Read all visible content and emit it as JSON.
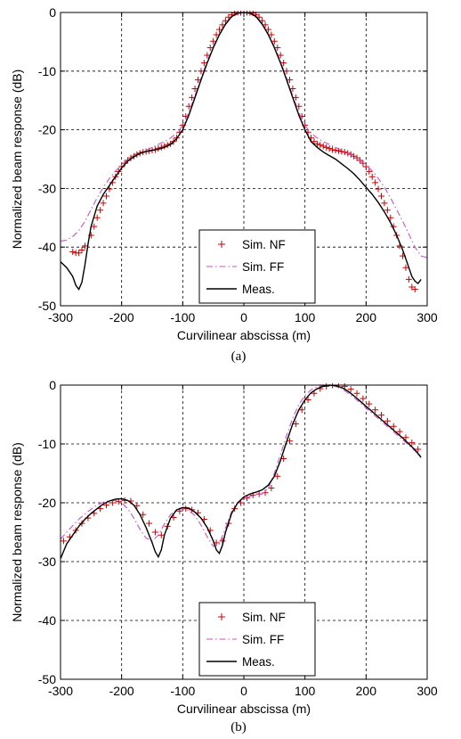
{
  "chart_data": [
    {
      "type": "line",
      "panel_caption": "(a)",
      "xlabel": "Curvilinear abscissa (m)",
      "ylabel": "Normalized beam response (dB)",
      "xlim": [
        -300,
        300
      ],
      "ylim": [
        -50,
        0
      ],
      "xticks": [
        "-300",
        "-200",
        "-100",
        "0",
        "100",
        "200",
        "300"
      ],
      "yticks": [
        "-50",
        "-40",
        "-30",
        "-20",
        "-10",
        "0"
      ],
      "grid": true,
      "legend_position": "bottom-center",
      "series": [
        {
          "name": "Sim. NF",
          "style": "plus-markers",
          "color": "#cc0000",
          "x": [
            -280,
            -275,
            -270,
            -265,
            -260,
            -250,
            -245,
            -240,
            -235,
            -230,
            -225,
            -220,
            -215,
            -210,
            -205,
            -200,
            -195,
            -190,
            -185,
            -180,
            -175,
            -170,
            -165,
            -160,
            -155,
            -150,
            -145,
            -140,
            -135,
            -130,
            -125,
            -120,
            -115,
            -110,
            -105,
            -100,
            -95,
            -90,
            -85,
            -80,
            -75,
            -70,
            -65,
            -60,
            -55,
            -50,
            -45,
            -40,
            -35,
            -30,
            -25,
            -20,
            -15,
            -10,
            -5,
            0,
            5,
            10,
            15,
            20,
            25,
            30,
            35,
            40,
            45,
            50,
            55,
            60,
            65,
            70,
            75,
            80,
            85,
            90,
            95,
            100,
            105,
            110,
            115,
            120,
            125,
            130,
            135,
            140,
            145,
            150,
            155,
            160,
            165,
            170,
            175,
            180,
            185,
            190,
            195,
            200,
            205,
            210,
            215,
            220,
            225,
            230,
            235,
            240,
            245,
            250,
            255,
            260,
            265,
            270,
            275,
            280
          ],
          "y": [
            -40.8,
            -41.0,
            -41.0,
            -40.5,
            -39.8,
            -38.0,
            -36.5,
            -35.0,
            -33.7,
            -32.5,
            -31.3,
            -30.1,
            -29.0,
            -28.0,
            -27.1,
            -26.3,
            -25.7,
            -25.2,
            -24.8,
            -24.5,
            -24.2,
            -24.0,
            -23.8,
            -23.7,
            -23.6,
            -23.5,
            -23.4,
            -23.2,
            -23.0,
            -22.8,
            -22.6,
            -22.4,
            -22.0,
            -21.4,
            -20.4,
            -19.2,
            -17.7,
            -16.0,
            -14.5,
            -13.0,
            -11.5,
            -10.0,
            -8.6,
            -7.3,
            -6.0,
            -4.9,
            -3.8,
            -2.9,
            -2.1,
            -1.4,
            -0.8,
            -0.4,
            -0.1,
            0.0,
            0.0,
            0.0,
            0.0,
            0.0,
            -0.1,
            -0.4,
            -0.8,
            -1.4,
            -2.1,
            -2.9,
            -3.8,
            -4.9,
            -6.0,
            -7.3,
            -8.6,
            -10.0,
            -11.5,
            -13.0,
            -14.5,
            -16.0,
            -17.7,
            -19.2,
            -20.4,
            -21.4,
            -22.0,
            -22.4,
            -22.6,
            -22.8,
            -23.0,
            -23.2,
            -23.4,
            -23.5,
            -23.6,
            -23.7,
            -23.8,
            -24.0,
            -24.2,
            -24.5,
            -24.8,
            -25.2,
            -25.7,
            -26.3,
            -27.1,
            -28.0,
            -29.0,
            -30.1,
            -31.3,
            -32.5,
            -33.7,
            -35.0,
            -36.5,
            -38.0,
            -39.8,
            -41.5,
            -43.5,
            -45.5,
            -46.8,
            -47.2
          ]
        },
        {
          "name": "Sim. FF",
          "style": "dash-dot",
          "color": "#d050d0",
          "x": [
            -300,
            -290,
            -280,
            -270,
            -260,
            -250,
            -240,
            -230,
            -220,
            -210,
            -200,
            -190,
            -180,
            -170,
            -160,
            -150,
            -140,
            -130,
            -120,
            -110,
            -100,
            -90,
            -80,
            -70,
            -60,
            -50,
            -40,
            -30,
            -20,
            -10,
            0,
            10,
            20,
            30,
            40,
            50,
            60,
            70,
            80,
            90,
            100,
            110,
            120,
            130,
            140,
            150,
            160,
            170,
            180,
            190,
            200,
            210,
            220,
            230,
            240,
            250,
            260,
            270,
            280,
            290,
            300
          ],
          "y": [
            -39.0,
            -38.8,
            -38.2,
            -37.2,
            -35.6,
            -33.6,
            -31.6,
            -29.8,
            -28.3,
            -27.0,
            -26.0,
            -25.2,
            -24.6,
            -24.0,
            -23.5,
            -23.0,
            -22.5,
            -22.0,
            -21.4,
            -20.6,
            -19.3,
            -17.0,
            -14.2,
            -11.2,
            -8.3,
            -5.8,
            -3.7,
            -2.0,
            -0.8,
            -0.2,
            0.0,
            -0.2,
            -0.8,
            -2.0,
            -3.7,
            -5.8,
            -8.3,
            -11.2,
            -14.2,
            -17.0,
            -19.3,
            -20.6,
            -21.4,
            -22.0,
            -22.5,
            -23.0,
            -23.5,
            -24.0,
            -24.6,
            -25.2,
            -26.0,
            -27.0,
            -28.3,
            -29.8,
            -31.6,
            -33.6,
            -35.6,
            -37.8,
            -40.0,
            -41.5,
            -41.8
          ]
        },
        {
          "name": "Meas.",
          "style": "solid",
          "color": "#000000",
          "x": [
            -300,
            -290,
            -280,
            -275,
            -270,
            -265,
            -260,
            -255,
            -250,
            -240,
            -230,
            -220,
            -210,
            -200,
            -190,
            -180,
            -170,
            -160,
            -150,
            -140,
            -130,
            -120,
            -110,
            -100,
            -90,
            -80,
            -70,
            -60,
            -50,
            -40,
            -30,
            -20,
            -10,
            0,
            10,
            20,
            30,
            40,
            50,
            60,
            70,
            80,
            90,
            100,
            110,
            120,
            130,
            140,
            150,
            160,
            170,
            180,
            190,
            200,
            210,
            220,
            230,
            240,
            250,
            260,
            265,
            270,
            275,
            280,
            285,
            290
          ],
          "y": [
            -42.5,
            -43.5,
            -45.0,
            -46.5,
            -47.2,
            -46.0,
            -43.0,
            -39.5,
            -36.5,
            -33.0,
            -31.0,
            -29.5,
            -28.0,
            -26.5,
            -25.3,
            -24.6,
            -24.0,
            -23.7,
            -23.5,
            -23.3,
            -23.0,
            -22.5,
            -21.5,
            -20.0,
            -17.5,
            -14.5,
            -11.5,
            -8.6,
            -6.0,
            -3.8,
            -2.0,
            -0.7,
            -0.1,
            0.0,
            -0.1,
            -0.7,
            -2.0,
            -3.8,
            -6.0,
            -8.6,
            -11.5,
            -14.5,
            -17.5,
            -20.0,
            -22.0,
            -23.0,
            -23.8,
            -24.4,
            -25.0,
            -25.8,
            -26.6,
            -27.5,
            -28.6,
            -29.8,
            -31.0,
            -32.4,
            -34.0,
            -35.8,
            -38.0,
            -40.5,
            -42.0,
            -43.5,
            -45.0,
            -45.8,
            -46.2,
            -45.5
          ]
        }
      ]
    },
    {
      "type": "line",
      "panel_caption": "(b)",
      "xlabel": "Curvilinear abscissa (m)",
      "ylabel": "Normalized beam response (dB)",
      "xlim": [
        -300,
        300
      ],
      "ylim": [
        -50,
        0
      ],
      "xticks": [
        "-300",
        "-200",
        "-100",
        "0",
        "100",
        "200",
        "300"
      ],
      "yticks": [
        "-50",
        "-40",
        "-30",
        "-20",
        "-10",
        "0"
      ],
      "grid": true,
      "legend_position": "bottom-center",
      "series": [
        {
          "name": "Sim. NF",
          "style": "plus-markers",
          "color": "#cc0000",
          "x": [
            -295,
            -285,
            -275,
            -265,
            -255,
            -245,
            -235,
            -225,
            -215,
            -205,
            -195,
            -185,
            -175,
            -165,
            -155,
            -145,
            -135,
            -125,
            -115,
            -105,
            -95,
            -85,
            -75,
            -65,
            -55,
            -45,
            -35,
            -25,
            -15,
            -5,
            5,
            15,
            25,
            35,
            45,
            55,
            65,
            75,
            85,
            95,
            105,
            115,
            125,
            135,
            145,
            155,
            165,
            175,
            185,
            195,
            205,
            215,
            225,
            235,
            245,
            255,
            265,
            275,
            285
          ],
          "y": [
            -26.5,
            -25.8,
            -24.7,
            -23.5,
            -22.6,
            -21.8,
            -21.0,
            -20.4,
            -20.0,
            -19.8,
            -19.6,
            -19.7,
            -20.5,
            -22.0,
            -23.5,
            -25.0,
            -25.5,
            -24.0,
            -22.5,
            -21.4,
            -21.0,
            -21.2,
            -21.7,
            -22.8,
            -24.7,
            -26.8,
            -26.5,
            -23.5,
            -21.0,
            -20.0,
            -19.2,
            -18.7,
            -18.5,
            -18.3,
            -17.5,
            -15.5,
            -12.5,
            -9.5,
            -6.6,
            -4.2,
            -2.5,
            -1.4,
            -0.6,
            -0.2,
            0.0,
            0.0,
            -0.2,
            -0.7,
            -1.4,
            -2.3,
            -3.2,
            -4.2,
            -5.1,
            -6.1,
            -7.0,
            -7.9,
            -8.9,
            -9.8,
            -10.9
          ]
        },
        {
          "name": "Sim. FF",
          "style": "dash-dot",
          "color": "#d050d0",
          "x": [
            -300,
            -290,
            -280,
            -270,
            -260,
            -250,
            -240,
            -230,
            -220,
            -210,
            -200,
            -190,
            -180,
            -170,
            -160,
            -150,
            -140,
            -130,
            -120,
            -110,
            -100,
            -90,
            -80,
            -70,
            -60,
            -50,
            -40,
            -30,
            -20,
            -10,
            0,
            10,
            20,
            30,
            40,
            50,
            60,
            70,
            80,
            90,
            100,
            110,
            120,
            130,
            140,
            150,
            160,
            170,
            180,
            190,
            200,
            210,
            220,
            230,
            240,
            250,
            260,
            270,
            280,
            290
          ],
          "y": [
            -26.2,
            -25.0,
            -23.9,
            -22.8,
            -21.9,
            -21.1,
            -20.4,
            -19.9,
            -19.6,
            -19.6,
            -20.0,
            -21.0,
            -22.6,
            -24.5,
            -26.0,
            -26.5,
            -25.5,
            -23.6,
            -22.0,
            -21.2,
            -21.0,
            -21.3,
            -22.2,
            -23.8,
            -25.8,
            -27.4,
            -27.0,
            -24.3,
            -21.5,
            -20.0,
            -19.3,
            -18.9,
            -18.7,
            -18.5,
            -17.5,
            -15.0,
            -11.8,
            -8.5,
            -5.6,
            -3.3,
            -1.8,
            -0.8,
            -0.3,
            -0.1,
            0.0,
            -0.2,
            -0.6,
            -1.3,
            -2.1,
            -3.0,
            -3.9,
            -4.8,
            -5.7,
            -6.6,
            -7.5,
            -8.4,
            -9.3,
            -10.2,
            -11.2,
            -12.0
          ]
        },
        {
          "name": "Meas.",
          "style": "solid",
          "color": "#000000",
          "x": [
            -300,
            -290,
            -280,
            -270,
            -260,
            -250,
            -240,
            -230,
            -220,
            -210,
            -200,
            -190,
            -180,
            -170,
            -160,
            -150,
            -145,
            -140,
            -135,
            -130,
            -120,
            -110,
            -100,
            -90,
            -80,
            -70,
            -60,
            -50,
            -45,
            -40,
            -35,
            -30,
            -20,
            -10,
            0,
            10,
            20,
            30,
            40,
            50,
            60,
            70,
            80,
            90,
            100,
            110,
            120,
            130,
            140,
            150,
            160,
            170,
            180,
            190,
            200,
            210,
            220,
            230,
            240,
            250,
            260,
            270,
            280,
            290
          ],
          "y": [
            -29.5,
            -27.0,
            -25.5,
            -24.0,
            -22.8,
            -21.8,
            -21.0,
            -20.2,
            -19.7,
            -19.4,
            -19.3,
            -19.6,
            -20.4,
            -22.0,
            -24.2,
            -26.8,
            -28.3,
            -29.2,
            -28.0,
            -25.5,
            -22.6,
            -21.2,
            -20.8,
            -20.9,
            -21.6,
            -22.6,
            -24.2,
            -26.5,
            -28.0,
            -28.6,
            -27.2,
            -25.0,
            -21.8,
            -20.0,
            -19.0,
            -18.5,
            -18.2,
            -17.8,
            -17.0,
            -15.5,
            -12.8,
            -9.6,
            -6.6,
            -4.2,
            -2.5,
            -1.3,
            -0.6,
            -0.2,
            0.0,
            -0.1,
            -0.4,
            -1.0,
            -1.8,
            -2.7,
            -3.6,
            -4.5,
            -5.4,
            -6.3,
            -7.2,
            -8.1,
            -9.0,
            -10.0,
            -11.0,
            -12.3
          ]
        }
      ]
    }
  ]
}
